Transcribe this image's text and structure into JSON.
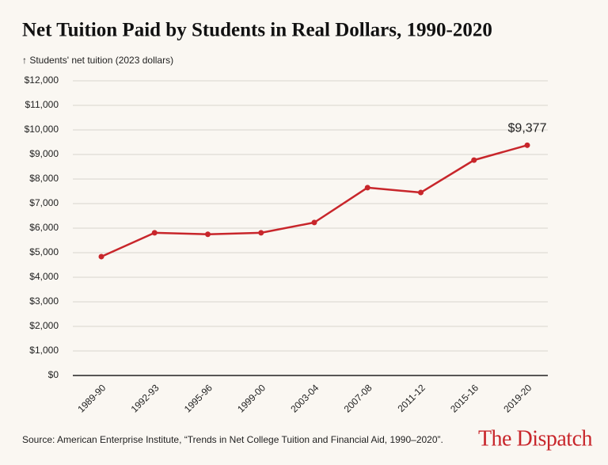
{
  "chart_data": {
    "type": "line",
    "title": "Net Tuition Paid by Students in Real Dollars, 1990-2020",
    "y_label": "↑ Students' net tuition (2023 dollars)",
    "source": "Source: American Enterprise Institute, “Trends in Net College Tuition and Financial Aid, 1990–2020”.",
    "brand": "The Dispatch",
    "categories": [
      "1989-90",
      "1992-93",
      "1995-96",
      "1999-00",
      "2003-04",
      "2007-08",
      "2011-12",
      "2015-16",
      "2019-20"
    ],
    "series": [
      {
        "name": "Students' net tuition",
        "color": "#c8262b",
        "values": [
          4840,
          5810,
          5750,
          5810,
          6230,
          7650,
          7450,
          8770,
          9377
        ],
        "value_labels": [
          null,
          null,
          null,
          null,
          null,
          null,
          null,
          null,
          "$9,377"
        ]
      }
    ],
    "ylim": [
      0,
      12000
    ],
    "yticks": [
      {
        "value": 0,
        "label": "$0"
      },
      {
        "value": 1000,
        "label": "$1,000"
      },
      {
        "value": 2000,
        "label": "$2,000"
      },
      {
        "value": 3000,
        "label": "$3,000"
      },
      {
        "value": 4000,
        "label": "$4,000"
      },
      {
        "value": 5000,
        "label": "$5,000"
      },
      {
        "value": 6000,
        "label": "$6,000"
      },
      {
        "value": 7000,
        "label": "$7,000"
      },
      {
        "value": 8000,
        "label": "$8,000"
      },
      {
        "value": 9000,
        "label": "$9,000"
      },
      {
        "value": 10000,
        "label": "$10,000"
      },
      {
        "value": 11000,
        "label": "$11,000"
      },
      {
        "value": 12000,
        "label": "$12,000"
      }
    ],
    "grid": true
  }
}
